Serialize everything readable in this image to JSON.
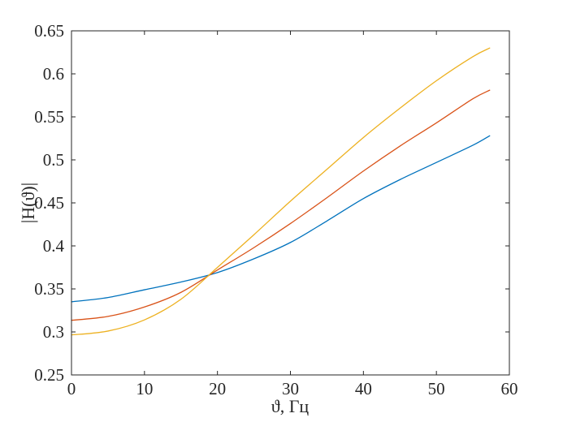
{
  "figure": {
    "background": "#ffffff",
    "axis_color": "#262626",
    "tick_label_color": "#262626"
  },
  "chart_data": {
    "type": "line",
    "title": "",
    "xlabel": "ϑ, Гц",
    "ylabel": "|H(ϑ)|",
    "xlim": [
      0,
      60
    ],
    "ylim": [
      0.25,
      0.65
    ],
    "xticks": [
      0,
      10,
      20,
      30,
      40,
      50,
      60
    ],
    "xtick_labels": [
      "0",
      "10",
      "20",
      "30",
      "40",
      "50",
      "60"
    ],
    "yticks": [
      0.25,
      0.3,
      0.35,
      0.4,
      0.45,
      0.5,
      0.55,
      0.6,
      0.65
    ],
    "ytick_labels": [
      "0.25",
      "0.3",
      "0.35",
      "0.4",
      "0.45",
      "0.5",
      "0.55",
      "0.6",
      "0.65"
    ],
    "grid": false,
    "legend_position": "none",
    "x": [
      0,
      5,
      10,
      15,
      20,
      25,
      30,
      35,
      40,
      45,
      50,
      55,
      57.3
    ],
    "series": [
      {
        "name": "curve-blue",
        "color": "#0072BD",
        "values": [
          0.335,
          0.34,
          0.349,
          0.358,
          0.369,
          0.385,
          0.404,
          0.429,
          0.455,
          0.477,
          0.497,
          0.517,
          0.528
        ]
      },
      {
        "name": "curve-orange",
        "color": "#D95319",
        "values": [
          0.3135,
          0.318,
          0.329,
          0.346,
          0.372,
          0.398,
          0.426,
          0.456,
          0.487,
          0.516,
          0.543,
          0.571,
          0.581
        ]
      },
      {
        "name": "curve-yellow",
        "color": "#EDB120",
        "values": [
          0.2965,
          0.301,
          0.314,
          0.338,
          0.375,
          0.413,
          0.452,
          0.489,
          0.526,
          0.56,
          0.592,
          0.62,
          0.63
        ]
      }
    ]
  }
}
